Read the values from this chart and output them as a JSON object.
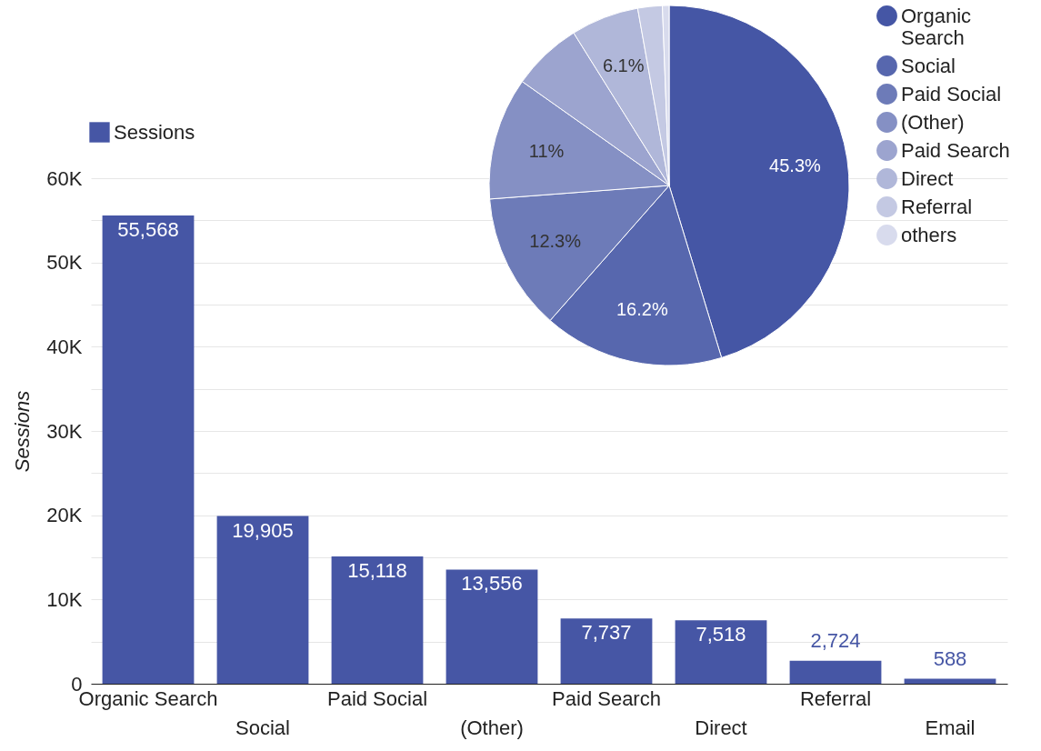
{
  "chart_data": [
    {
      "type": "bar",
      "categories": [
        "Organic Search",
        "Social",
        "Paid Social",
        "(Other)",
        "Paid Search",
        "Direct",
        "Referral",
        "Email"
      ],
      "series": [
        {
          "name": "Sessions",
          "color": "#4656a5",
          "values": [
            55568,
            19905,
            15118,
            13556,
            7737,
            7518,
            2724,
            588
          ],
          "value_labels": [
            "55,568",
            "19,905",
            "15,118",
            "13,556",
            "7,737",
            "7,518",
            "2,724",
            "588"
          ]
        }
      ],
      "ylabel": "Sessions",
      "ylim": [
        0,
        60000
      ],
      "yticks": [
        {
          "value": 0,
          "label": "0"
        },
        {
          "value": 5000,
          "label": null
        },
        {
          "value": 10000,
          "label": "10K"
        },
        {
          "value": 15000,
          "label": null
        },
        {
          "value": 20000,
          "label": "20K"
        },
        {
          "value": 25000,
          "label": null
        },
        {
          "value": 30000,
          "label": "30K"
        },
        {
          "value": 35000,
          "label": null
        },
        {
          "value": 40000,
          "label": "40K"
        },
        {
          "value": 45000,
          "label": null
        },
        {
          "value": 50000,
          "label": "50K"
        },
        {
          "value": 55000,
          "label": null
        },
        {
          "value": 60000,
          "label": "60K"
        }
      ],
      "grid": "y",
      "legend": "top left"
    },
    {
      "type": "pie",
      "categories": [
        "Organic Search",
        "Social",
        "Paid Social",
        "(Other)",
        "Paid Search",
        "Direct",
        "Referral",
        "others"
      ],
      "values": [
        45.3,
        16.2,
        12.3,
        11.0,
        6.3,
        6.1,
        2.2,
        0.6
      ],
      "value_labels": [
        "45.3%",
        "16.2%",
        "12.3%",
        "11%",
        null,
        "6.1%",
        null,
        null
      ],
      "colors": [
        "#4556a5",
        "#5767ae",
        "#6d7bb8",
        "#8590c4",
        "#9ca4cf",
        "#b0b7d9",
        "#c4c9e3",
        "#d8dbed"
      ],
      "legend": "right"
    }
  ]
}
